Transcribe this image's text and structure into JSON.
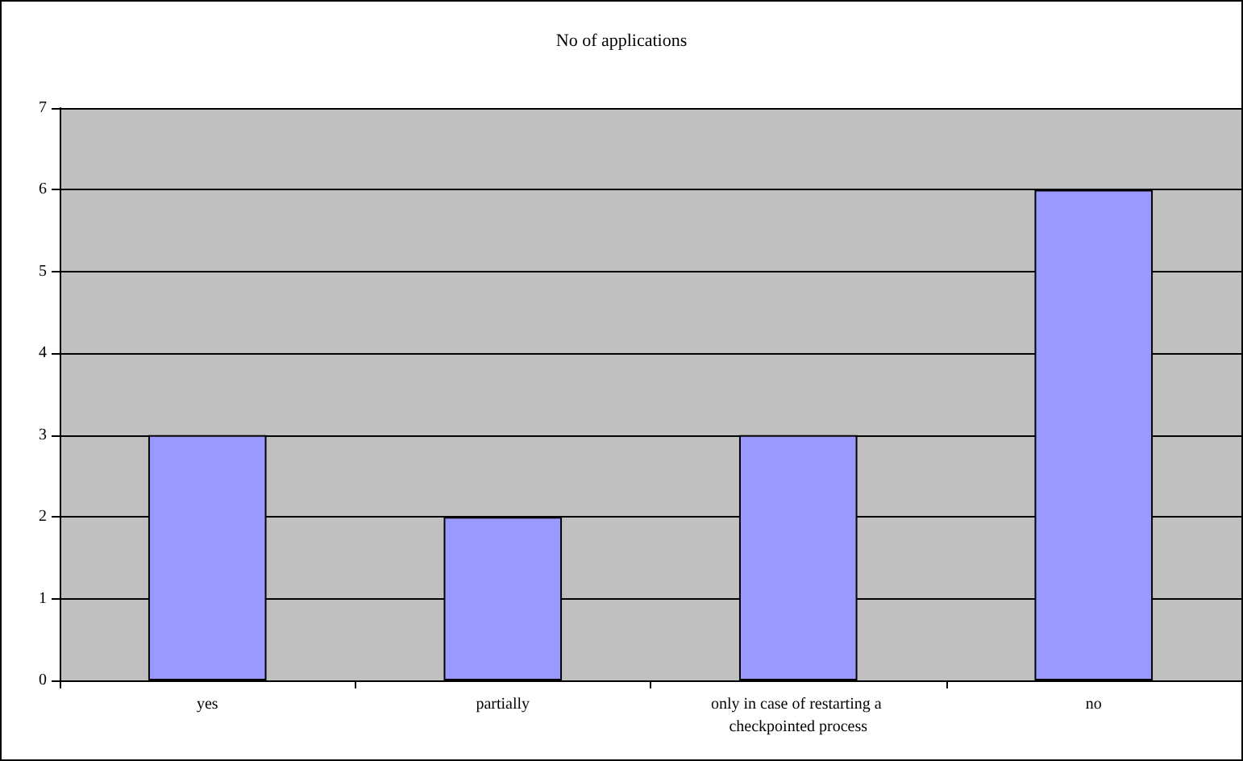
{
  "chart_data": {
    "type": "bar",
    "title": "No of applications",
    "categories": [
      "yes",
      "partially",
      "only in case of restarting a checkpointed process",
      "no"
    ],
    "values": [
      3,
      2,
      3,
      6
    ],
    "color": "#9999ff",
    "ylim": [
      0,
      7
    ],
    "yticks": [
      0,
      1,
      2,
      3,
      4,
      5,
      6,
      7
    ],
    "grid": "y"
  }
}
